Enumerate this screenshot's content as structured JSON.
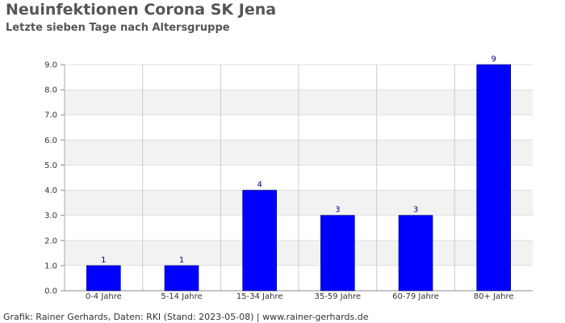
{
  "chart_data": {
    "type": "bar",
    "title": "Neuinfektionen Corona SK Jena",
    "subtitle": "Letzte sieben Tage nach Altersgruppe",
    "categories": [
      "0-4 Jahre",
      "5-14 Jahre",
      "15-34 Jahre",
      "35-59 Jahre",
      "60-79 Jahre",
      "80+ Jahre"
    ],
    "values": [
      1,
      1,
      4,
      3,
      3,
      9
    ],
    "data_labels": [
      "1",
      "1",
      "4",
      "3",
      "3",
      "9"
    ],
    "yticks": [
      "0.0",
      "1.0",
      "2.0",
      "3.0",
      "4.0",
      "5.0",
      "6.0",
      "7.0",
      "8.0",
      "9.0"
    ],
    "ylim": [
      0,
      9
    ],
    "xlabel": "",
    "ylabel": "",
    "grid": true,
    "bar_color": "#0000ff",
    "label_color": "#00008b"
  },
  "footer": {
    "text": "Grafik: Rainer Gerhards, Daten: RKI (Stand: 2023-05-08) | www.rainer-gerhards.de"
  }
}
